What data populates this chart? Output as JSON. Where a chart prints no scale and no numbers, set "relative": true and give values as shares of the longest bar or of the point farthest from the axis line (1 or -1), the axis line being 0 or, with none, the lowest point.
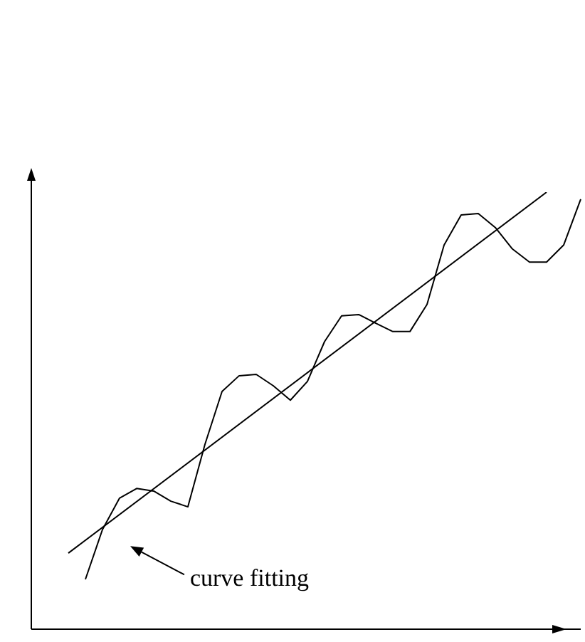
{
  "chart_data": {
    "type": "line",
    "relative": true,
    "grid": false,
    "marker": "none",
    "line_style": "solid",
    "categories": [
      null,
      null,
      null,
      null,
      null,
      null,
      null,
      null,
      null,
      null,
      null,
      null,
      null,
      null,
      null,
      null,
      null,
      null,
      null,
      null,
      null,
      null,
      null,
      null,
      null,
      null,
      null,
      null,
      null,
      null,
      null
    ],
    "series": [
      {
        "color": "#000000",
        "values": [
          null,
          0.114,
          0.228,
          0.3,
          0.322,
          0.316,
          0.293,
          0.28,
          0.423,
          0.544,
          0.58,
          0.583,
          0.557,
          0.524,
          0.567,
          0.658,
          0.717,
          0.72,
          0.7,
          0.681,
          0.681,
          0.743,
          0.879,
          0.948,
          0.951,
          0.919,
          0.87,
          0.84,
          0.84,
          0.879,
          0.984
        ]
      },
      {
        "color": "#000000",
        "values": [
          0.174,
          null,
          null,
          null,
          null,
          null,
          null,
          null,
          null,
          null,
          null,
          null,
          null,
          null,
          null,
          null,
          null,
          null,
          null,
          null,
          null,
          null,
          null,
          null,
          null,
          null,
          null,
          null,
          1,
          null,
          null
        ]
      }
    ],
    "annotations": [
      "curve fitting"
    ]
  }
}
